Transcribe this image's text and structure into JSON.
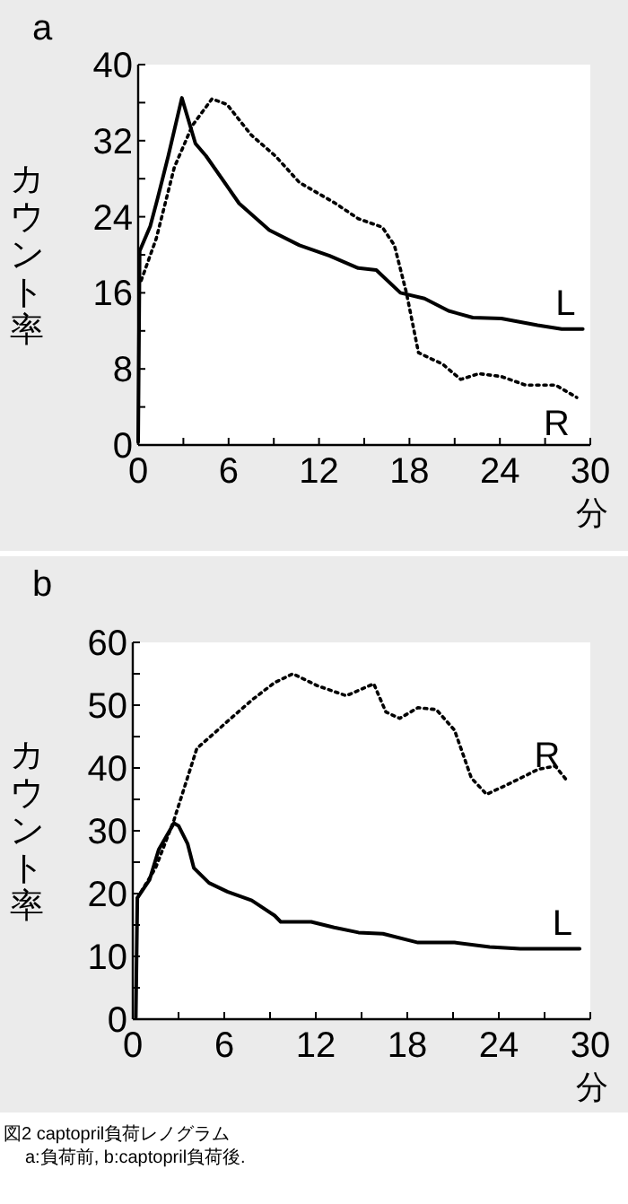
{
  "chart_data": [
    {
      "type": "line",
      "title": "a",
      "xlabel": "分",
      "ylabel": "カウント率",
      "xlim": [
        0,
        30
      ],
      "ylim": [
        0,
        40
      ],
      "xticks": [
        0,
        {
          "value": 3,
          "label": null
        },
        6,
        {
          "value": 9,
          "label": null
        },
        12,
        {
          "value": 15,
          "label": null
        },
        18,
        {
          "value": 21,
          "label": null
        },
        24,
        {
          "value": 27,
          "label": null
        },
        30
      ],
      "yticks": [
        0,
        {
          "value": 4,
          "label": null
        },
        8,
        {
          "value": 12,
          "label": null
        },
        16,
        {
          "value": 20,
          "label": null
        },
        24,
        {
          "value": 28,
          "label": null
        },
        32,
        {
          "value": 36,
          "label": null
        },
        40
      ],
      "series": [
        {
          "name": "L",
          "color": "#000000",
          "line_style": "solid",
          "x": [
            0,
            0.1,
            0.8,
            1.3,
            2,
            2.9,
            3.8,
            4.5,
            6.7,
            8.7,
            10.7,
            12.7,
            14.6,
            15.8,
            17.4,
            19,
            20.6,
            22.2,
            24.1,
            26.5,
            28.1,
            29.5
          ],
          "values": [
            0.3,
            20.4,
            23,
            26,
            30.4,
            36.5,
            31.7,
            30.4,
            25.4,
            22.6,
            21,
            19.9,
            18.6,
            18.4,
            16,
            15.4,
            14.1,
            13.4,
            13.3,
            12.6,
            12.2,
            12.2
          ]
        },
        {
          "name": "R",
          "color": "#000000",
          "line_style": "dotted",
          "x": [
            0.2,
            1.2,
            2.4,
            3.6,
            4.9,
            5.9,
            7.5,
            9.1,
            10.7,
            13.1,
            14.6,
            16.2,
            17,
            17.8,
            18.6,
            20.2,
            21.4,
            22.6,
            24.1,
            25.7,
            27.7,
            29.1
          ],
          "values": [
            17.3,
            21.7,
            29.2,
            33.6,
            36.4,
            35.8,
            32.6,
            30.4,
            27.6,
            25.4,
            23.8,
            22.9,
            21,
            16,
            9.7,
            8.5,
            6.9,
            7.5,
            7.2,
            6.3,
            6.3,
            5
          ]
        }
      ]
    },
    {
      "type": "line",
      "title": "b",
      "xlabel": "分",
      "ylabel": "カウント率",
      "xlim": [
        0,
        30
      ],
      "ylim": [
        0,
        60
      ],
      "xticks": [
        0,
        {
          "value": 3,
          "label": null
        },
        6,
        {
          "value": 9,
          "label": null
        },
        12,
        {
          "value": 15,
          "label": null
        },
        18,
        {
          "value": 21,
          "label": null
        },
        24,
        {
          "value": 27,
          "label": null
        },
        30
      ],
      "yticks": [
        0,
        {
          "value": 5,
          "label": null
        },
        10,
        {
          "value": 15,
          "label": null
        },
        20,
        {
          "value": 25,
          "label": null
        },
        30,
        {
          "value": 35,
          "label": null
        },
        40,
        {
          "value": 45,
          "label": null
        },
        50,
        {
          "value": 55,
          "label": null
        },
        60
      ],
      "series": [
        {
          "name": "L",
          "color": "#000000",
          "line_style": "solid",
          "x": [
            0.2,
            0.3,
            1.1,
            1.7,
            2.7,
            3,
            3.6,
            4,
            5,
            6.2,
            7.8,
            9.3,
            9.7,
            11.7,
            13.2,
            14.8,
            16.4,
            18.7,
            21.1,
            23.4,
            25.4,
            29.3
          ],
          "values": [
            0.3,
            19.3,
            22.2,
            27,
            31.2,
            30.8,
            27.9,
            24.1,
            21.7,
            20.3,
            18.9,
            16.5,
            15.5,
            15.5,
            14.6,
            13.8,
            13.6,
            12.2,
            12.2,
            11.5,
            11.2,
            11.2
          ]
        },
        {
          "name": "R",
          "color": "#000000",
          "line_style": "dotted",
          "x": [
            0.3,
            1.5,
            2.7,
            4.2,
            6.2,
            7.8,
            9.3,
            10.5,
            12.1,
            14,
            15.8,
            16.6,
            17.5,
            18.7,
            19.9,
            21.1,
            22.2,
            23.2,
            24.6,
            26.6,
            27.7,
            28.5
          ],
          "values": [
            19.3,
            24.1,
            31.7,
            43.1,
            47.4,
            50.8,
            53.6,
            55,
            53.1,
            51.5,
            53.4,
            48.9,
            47.9,
            49.6,
            49.3,
            46,
            38.4,
            35.8,
            37.4,
            39.8,
            40.3,
            37.9
          ]
        }
      ],
      "annotations": [
        "図2 captopril負荷レノグラム",
        "a:負荷前, b:captopril負荷後."
      ]
    }
  ]
}
